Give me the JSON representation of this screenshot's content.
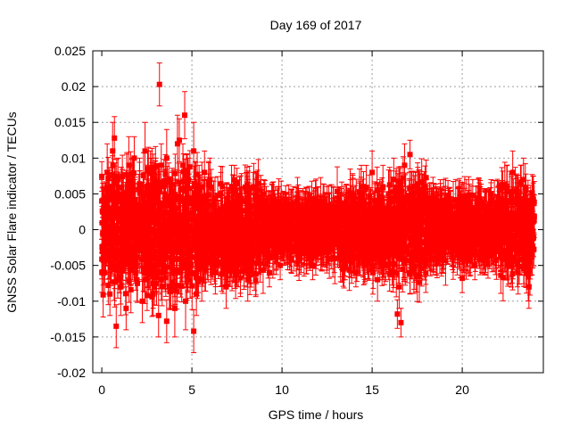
{
  "chart_data": {
    "type": "scatter",
    "title": "Day 169 of 2017",
    "xlabel": "GPS time / hours",
    "ylabel": "GNSS Solar Flare indicator / TECUs",
    "xlim": [
      -0.5,
      24.5
    ],
    "ylim": [
      -0.02,
      0.025
    ],
    "x_ticks": [
      0,
      5,
      10,
      15,
      20
    ],
    "x_tick_labels": [
      "0",
      "5",
      "10",
      "15",
      "20"
    ],
    "y_ticks": [
      -0.02,
      -0.015,
      -0.01,
      -0.005,
      0,
      0.005,
      0.01,
      0.015,
      0.02,
      0.025
    ],
    "y_tick_labels": [
      "-0.02",
      "-0.015",
      "-0.01",
      "-0.005",
      "0",
      "0.005",
      "0.01",
      "0.015",
      "0.02",
      "0.025"
    ],
    "grid": true,
    "marker": "square",
    "color": "#ff0000",
    "error_bars": true,
    "series": [
      {
        "x": [
          0.0,
          0.15,
          0.3,
          0.45,
          0.6,
          0.75,
          0.9,
          1.05,
          1.2,
          1.35,
          1.5,
          1.65,
          1.8,
          1.95,
          2.1,
          2.25,
          2.4,
          2.55,
          2.7,
          2.85,
          3.0,
          3.15,
          3.3,
          3.45,
          3.6,
          3.75,
          3.9,
          4.05,
          4.2,
          4.35,
          4.5,
          4.65,
          4.8,
          4.95,
          5.1,
          5.25,
          5.4,
          5.55,
          5.7,
          5.85,
          6.0,
          6.3,
          6.6,
          6.9,
          7.2,
          7.5,
          7.8,
          8.1,
          8.4,
          8.7,
          9.0,
          9.3,
          9.6,
          9.9,
          10.2,
          10.5,
          10.8,
          11.1,
          11.4,
          11.7,
          12.0,
          12.3,
          12.6,
          12.9,
          13.2,
          13.5,
          13.8,
          14.1,
          14.4,
          14.7,
          15.0,
          15.3,
          15.6,
          15.9,
          16.2,
          16.5,
          16.8,
          17.1,
          17.4,
          17.7,
          18.0,
          18.3,
          18.6,
          18.9,
          19.2,
          19.5,
          19.8,
          20.1,
          20.4,
          20.7,
          21.0,
          21.3,
          21.6,
          21.9,
          22.2,
          22.5,
          22.8,
          23.1,
          23.4,
          23.7,
          3.2,
          4.6,
          0.7,
          4.3,
          16.6,
          17.1,
          0.8,
          3.6,
          5.1,
          16.4,
          20.0
        ],
        "y": [
          0.004,
          -0.006,
          0.008,
          -0.009,
          0.011,
          -0.004,
          0.007,
          -0.008,
          0.005,
          -0.011,
          0.009,
          -0.003,
          0.01,
          -0.007,
          0.006,
          -0.01,
          0.011,
          -0.005,
          0.008,
          -0.009,
          0.006,
          -0.012,
          0.009,
          -0.004,
          0.01,
          -0.008,
          0.005,
          -0.011,
          0.012,
          -0.006,
          0.009,
          -0.01,
          0.007,
          -0.005,
          0.011,
          -0.009,
          0.006,
          -0.007,
          0.008,
          -0.004,
          0.007,
          -0.006,
          0.005,
          -0.008,
          0.006,
          -0.005,
          0.004,
          -0.007,
          0.006,
          -0.004,
          0.005,
          -0.006,
          0.004,
          -0.005,
          0.003,
          -0.004,
          0.004,
          -0.003,
          0.003,
          -0.005,
          0.004,
          -0.003,
          0.003,
          -0.004,
          0.004,
          -0.005,
          0.005,
          -0.006,
          0.006,
          -0.004,
          0.008,
          -0.007,
          0.006,
          -0.005,
          0.007,
          -0.008,
          0.009,
          -0.006,
          0.006,
          -0.004,
          0.005,
          -0.003,
          0.004,
          -0.004,
          0.003,
          -0.003,
          0.004,
          -0.004,
          0.003,
          -0.005,
          0.004,
          -0.004,
          0.005,
          -0.003,
          0.004,
          -0.005,
          0.008,
          -0.006,
          0.007,
          -0.008,
          0.0203,
          0.016,
          0.0128,
          0.0125,
          -0.013,
          0.0105,
          -0.0135,
          -0.0128,
          -0.0142,
          -0.0118,
          -0.0068
        ],
        "err": [
          0.003,
          0.003,
          0.004,
          0.003,
          0.004,
          0.003,
          0.003,
          0.004,
          0.003,
          0.003,
          0.004,
          0.003,
          0.003,
          0.003,
          0.004,
          0.003,
          0.004,
          0.003,
          0.003,
          0.003,
          0.004,
          0.003,
          0.003,
          0.003,
          0.004,
          0.003,
          0.003,
          0.004,
          0.004,
          0.003,
          0.003,
          0.004,
          0.003,
          0.003,
          0.004,
          0.003,
          0.003,
          0.003,
          0.003,
          0.003,
          0.003,
          0.003,
          0.003,
          0.003,
          0.003,
          0.003,
          0.002,
          0.003,
          0.002,
          0.002,
          0.002,
          0.002,
          0.002,
          0.002,
          0.002,
          0.002,
          0.002,
          0.002,
          0.002,
          0.002,
          0.002,
          0.002,
          0.002,
          0.002,
          0.002,
          0.002,
          0.002,
          0.002,
          0.003,
          0.002,
          0.003,
          0.003,
          0.003,
          0.002,
          0.003,
          0.003,
          0.003,
          0.003,
          0.002,
          0.002,
          0.002,
          0.002,
          0.002,
          0.002,
          0.002,
          0.002,
          0.002,
          0.002,
          0.002,
          0.002,
          0.002,
          0.002,
          0.002,
          0.002,
          0.002,
          0.002,
          0.003,
          0.003,
          0.003,
          0.003,
          0.003,
          0.0033,
          0.003,
          0.003,
          0.002,
          0.002,
          0.003,
          0.003,
          0.003,
          0.002,
          0.002
        ]
      }
    ],
    "noise_band": [
      {
        "x0": 0,
        "x1": 2,
        "amp": 0.0095
      },
      {
        "x0": 2,
        "x1": 5.5,
        "amp": 0.01
      },
      {
        "x0": 5.5,
        "x1": 9,
        "amp": 0.0075
      },
      {
        "x0": 9,
        "x1": 13,
        "amp": 0.0045
      },
      {
        "x0": 13,
        "x1": 16,
        "amp": 0.0065
      },
      {
        "x0": 16,
        "x1": 18,
        "amp": 0.0075
      },
      {
        "x0": 18,
        "x1": 22,
        "amp": 0.005
      },
      {
        "x0": 22,
        "x1": 24,
        "amp": 0.0075
      }
    ]
  }
}
